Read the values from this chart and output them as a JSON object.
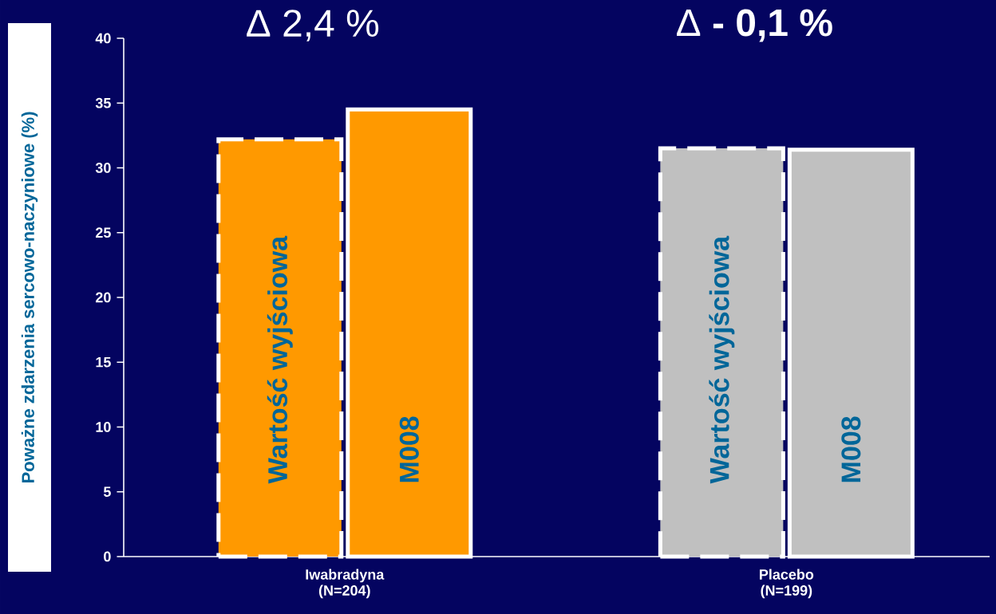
{
  "chart_data": {
    "type": "bar",
    "ylabel": "Poważne zdarzenia sercowo-naczyniowe (%)",
    "categories": [
      "Iwabradyna (N=204)",
      "Placebo (N=199)"
    ],
    "series": [
      {
        "name": "Wartość wyjściowa",
        "colors": [
          "#ff9900",
          "#c0c0c0"
        ],
        "line_style": "dashed",
        "values": [
          32.2,
          31.5
        ]
      },
      {
        "name": "M008",
        "colors": [
          "#ff9900",
          "#c0c0c0"
        ],
        "line_style": "solid",
        "values": [
          34.5,
          31.4
        ]
      }
    ],
    "ylim": [
      0,
      40
    ],
    "yticks": [
      0,
      5,
      10,
      15,
      20,
      25,
      30,
      35,
      40
    ],
    "grid": false,
    "annotations": [
      "Δ 2,4 %",
      "Δ **- 0,1 %**"
    ]
  }
}
